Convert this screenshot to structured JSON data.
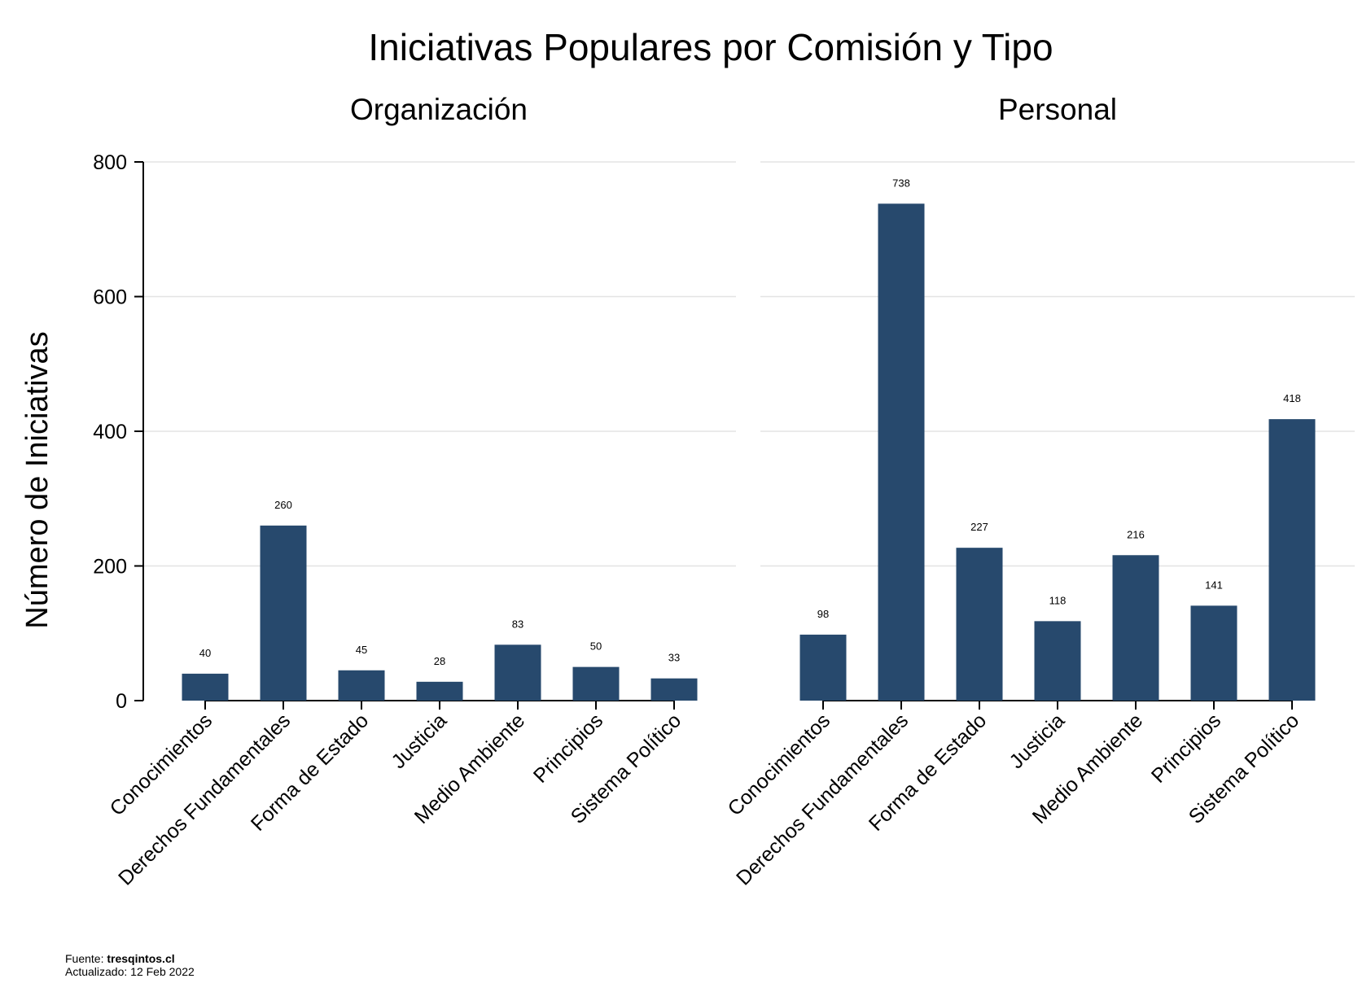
{
  "chart_data": {
    "type": "bar",
    "title": "Iniciativas Populares por Comisión y Tipo",
    "ylabel": "Número de Iniciativas",
    "ylim": [
      0,
      800
    ],
    "yticks": [
      0,
      200,
      400,
      600,
      800
    ],
    "grid": true,
    "bar_color": "#27496d",
    "categories": [
      "Conocimientos",
      "Derechos Fundamentales",
      "Forma de Estado",
      "Justicia",
      "Medio Ambiente",
      "Principios",
      "Sistema Político"
    ],
    "panels": [
      {
        "name": "Organización",
        "values": [
          40,
          260,
          45,
          28,
          83,
          50,
          33
        ]
      },
      {
        "name": "Personal",
        "values": [
          98,
          738,
          227,
          118,
          216,
          141,
          418
        ]
      }
    ]
  },
  "footer": {
    "source_label": "Fuente: ",
    "source_value": "tresqintos.cl",
    "updated": "Actualizado: 12 Feb 2022"
  }
}
